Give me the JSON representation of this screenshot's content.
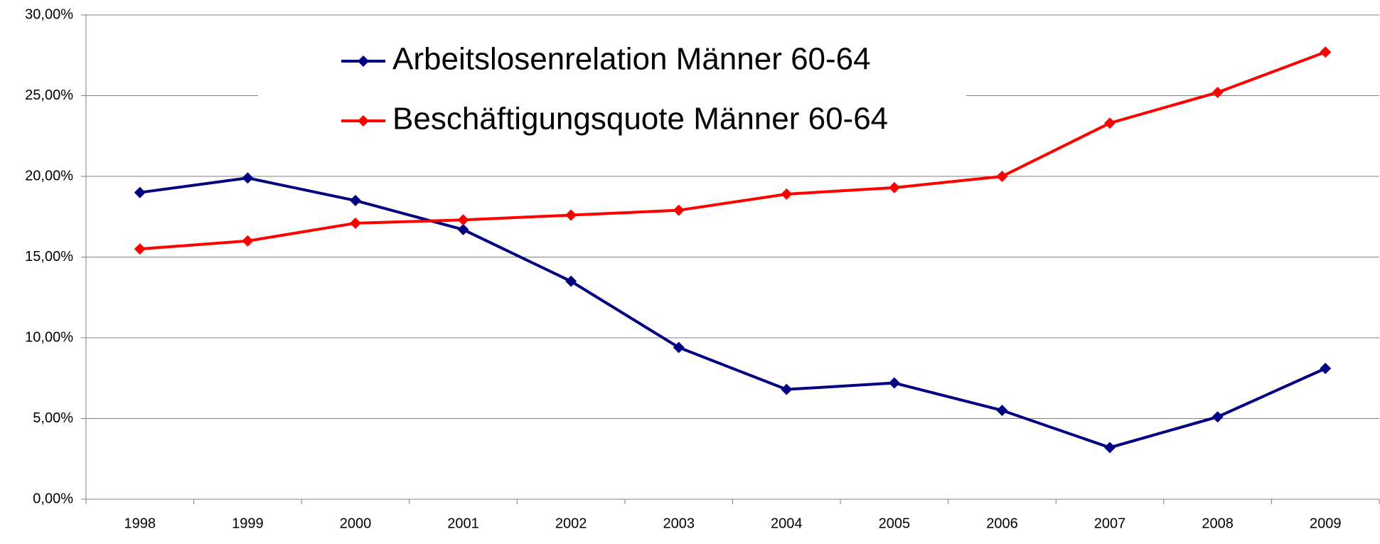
{
  "chart_data": {
    "type": "line",
    "categories": [
      "1998",
      "1999",
      "2000",
      "2001",
      "2002",
      "2003",
      "2004",
      "2005",
      "2006",
      "2007",
      "2008",
      "2009"
    ],
    "series": [
      {
        "name": "Arbeitslosenrelation Männer 60-64",
        "color": "#000080",
        "values": [
          19.0,
          19.9,
          18.5,
          16.7,
          13.5,
          9.4,
          6.8,
          7.2,
          5.5,
          3.2,
          5.1,
          8.1
        ]
      },
      {
        "name": "Beschäftigungsquote Männer 60-64",
        "color": "#ff0000",
        "values": [
          15.5,
          16.0,
          17.1,
          17.3,
          17.6,
          17.9,
          18.9,
          19.3,
          20.0,
          23.3,
          25.2,
          27.7
        ]
      }
    ],
    "ylim": [
      0,
      30
    ],
    "yticks": [
      {
        "value": 0,
        "label": "0,00%"
      },
      {
        "value": 5,
        "label": "5,00%"
      },
      {
        "value": 10,
        "label": "10,00%"
      },
      {
        "value": 15,
        "label": "15,00%"
      },
      {
        "value": 20,
        "label": "20,00%"
      },
      {
        "value": 25,
        "label": "25,00%"
      },
      {
        "value": 30,
        "label": "30,00%"
      }
    ],
    "grid": true,
    "legend": "top"
  }
}
